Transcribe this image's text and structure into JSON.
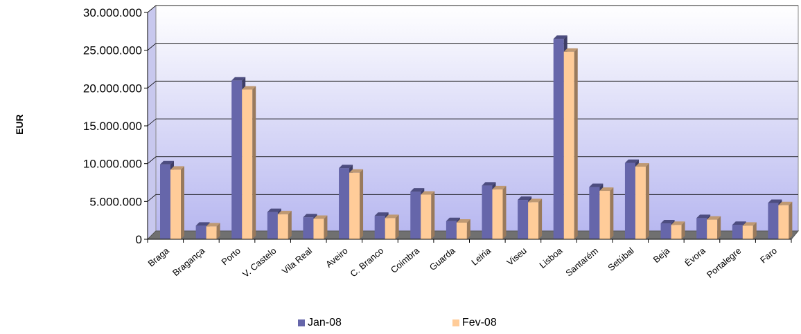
{
  "chart_data": {
    "type": "bar",
    "ylabel": "EUR",
    "ylim": [
      0,
      30000000
    ],
    "yticks": [
      "0",
      "5.000.000",
      "10.000.000",
      "15.000.000",
      "20.000.000",
      "25.000.000",
      "30.000.000"
    ],
    "ytick_values": [
      0,
      5000000,
      10000000,
      15000000,
      20000000,
      25000000,
      30000000
    ],
    "grid": true,
    "legend_position": "bottom",
    "categories": [
      "Braga",
      "Bragança",
      "Porto",
      "V. Castelo",
      "Vila Real",
      "Aveiro",
      "C. Branco",
      "Coimbra",
      "Guarda",
      "Leiria",
      "Viseu",
      "Lisboa",
      "Santarém",
      "Setúbal",
      "Beja",
      "Évora",
      "Portalegre",
      "Faro"
    ],
    "series": [
      {
        "name": "Jan-08",
        "color": "#6666aa",
        "values": [
          9900000,
          1800000,
          21000000,
          3600000,
          2900000,
          9400000,
          3100000,
          6300000,
          2400000,
          7100000,
          5200000,
          26500000,
          6900000,
          10100000,
          2100000,
          2800000,
          1900000,
          4800000
        ]
      },
      {
        "name": "Fev-08",
        "color": "#ffcc99",
        "values": [
          9200000,
          1700000,
          19800000,
          3300000,
          2700000,
          8800000,
          2800000,
          5900000,
          2200000,
          6600000,
          4900000,
          24800000,
          6400000,
          9600000,
          1900000,
          2600000,
          1800000,
          4500000
        ]
      }
    ]
  }
}
